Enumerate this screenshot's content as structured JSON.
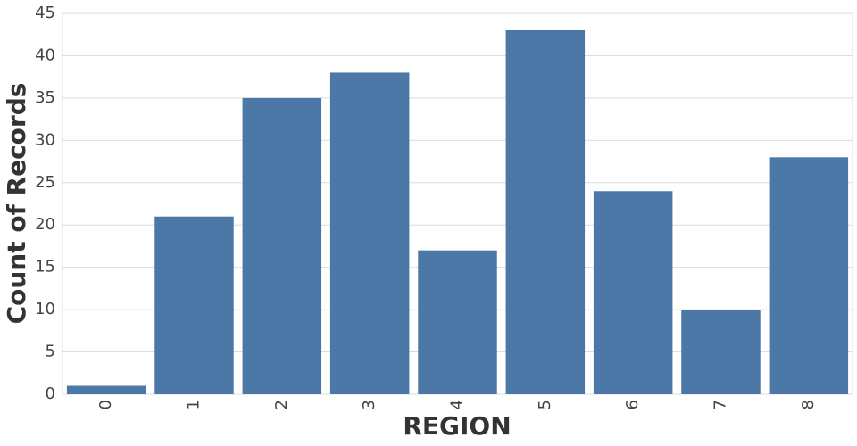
{
  "chart_data": {
    "type": "bar",
    "x_label": "REGION",
    "y_label": "Count of Records",
    "categories": [
      "0",
      "1",
      "2",
      "3",
      "4",
      "5",
      "6",
      "7",
      "8"
    ],
    "values": [
      1,
      21,
      35,
      38,
      17,
      43,
      24,
      10,
      28
    ],
    "color": "#4c78a8",
    "ylim": [
      0,
      45
    ],
    "yticks": [
      0,
      5,
      10,
      15,
      20,
      25,
      30,
      35,
      40,
      45
    ],
    "grid": true
  }
}
